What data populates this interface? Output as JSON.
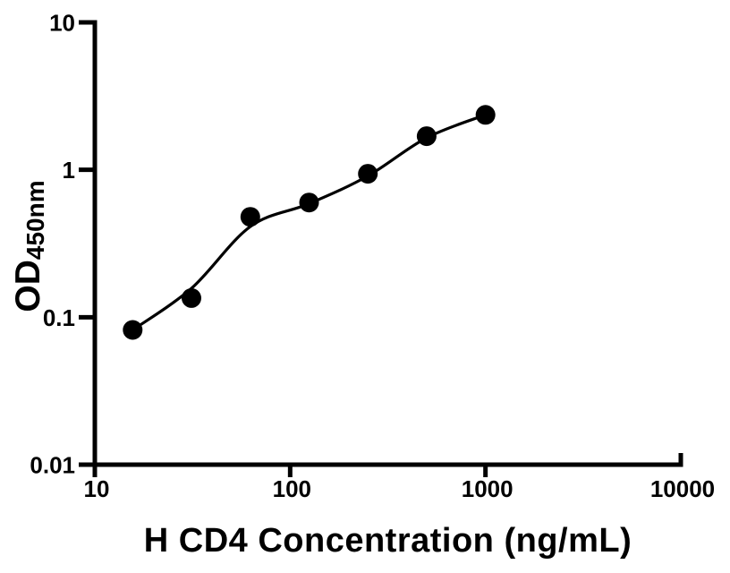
{
  "figure": {
    "background_color": "#ffffff",
    "foreground_color": "#000000"
  },
  "chart_data": {
    "type": "scatter",
    "title": "",
    "xlabel": "H CD4 Concentration (ng/mL)",
    "ylabel_main": "OD",
    "ylabel_sub": "450nm",
    "x_scale": "log",
    "y_scale": "log",
    "xlim": [
      10,
      10000
    ],
    "ylim": [
      0.01,
      10
    ],
    "x_ticks": [
      10,
      100,
      1000,
      10000
    ],
    "x_tick_labels": [
      "10",
      "100",
      "1000",
      "10000"
    ],
    "y_ticks": [
      0.01,
      0.1,
      1,
      10
    ],
    "y_tick_labels": [
      "0.01",
      "0.1",
      "1",
      "10"
    ],
    "grid": false,
    "legend": "none",
    "series": [
      {
        "name": "standard-points",
        "kind": "scatter",
        "marker": "circle",
        "marker_color": "#000000",
        "x": [
          15.625,
          31.25,
          62.5,
          125,
          250,
          500,
          1000
        ],
        "y": [
          0.082,
          0.135,
          0.48,
          0.6,
          0.94,
          1.69,
          2.36
        ]
      },
      {
        "name": "fit-curve",
        "kind": "line",
        "line_color": "#000000",
        "x": [
          15.625,
          31.25,
          62.5,
          125,
          250,
          500,
          1000
        ],
        "y": [
          0.082,
          0.157,
          0.412,
          0.589,
          0.909,
          1.65,
          2.36
        ]
      }
    ]
  }
}
